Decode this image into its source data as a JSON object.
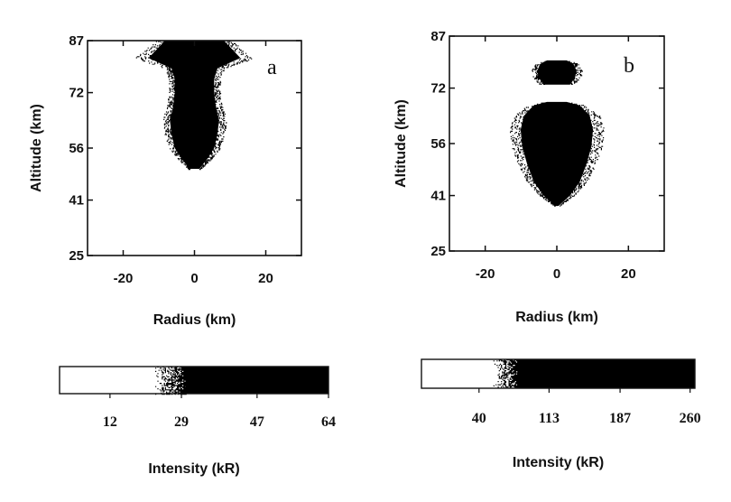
{
  "chart_data": [
    {
      "type": "heatmap",
      "panel_label": "a",
      "xlabel": "Radius (km)",
      "ylabel": "Altitude (km)",
      "xlim": [
        -30,
        30
      ],
      "ylim": [
        25,
        87
      ],
      "xticks": [
        -20,
        0,
        20
      ],
      "yticks": [
        25,
        41,
        56,
        72,
        87
      ],
      "grid": false,
      "emission_profile": {
        "description_units": "half-width of high-intensity region in km at each altitude",
        "altitude": [
          50,
          53,
          56,
          60,
          64,
          68,
          72,
          76,
          79,
          82,
          85,
          87
        ],
        "half_width": [
          1.5,
          4,
          6,
          7,
          7.5,
          6.5,
          6,
          6,
          7,
          14,
          11,
          9
        ]
      },
      "colorbar": {
        "label": "Intensity (kR)",
        "ticks": [
          12,
          29,
          47,
          64
        ],
        "range": [
          0,
          64
        ],
        "transition": [
          22,
          30
        ],
        "colors": [
          "#ffffff",
          "#000000"
        ]
      }
    },
    {
      "type": "heatmap",
      "panel_label": "b",
      "xlabel": "Radius (km)",
      "ylabel": "Altitude (km)",
      "xlim": [
        -30,
        30
      ],
      "ylim": [
        25,
        87
      ],
      "xticks": [
        -20,
        0,
        20
      ],
      "yticks": [
        25,
        41,
        56,
        72,
        87
      ],
      "grid": false,
      "emission_profile": {
        "altitude": [
          38,
          41,
          45,
          50,
          55,
          60,
          64,
          67,
          68
        ],
        "half_width": [
          0.5,
          4,
          7,
          9,
          10.5,
          11,
          10,
          7,
          3
        ]
      },
      "upper_patch": {
        "altitude": [
          73,
          75,
          77,
          79,
          80
        ],
        "half_width": [
          4,
          5.5,
          6,
          5,
          3
        ]
      },
      "colorbar": {
        "label": "Intensity (kR)",
        "ticks": [
          40,
          113,
          187,
          260
        ],
        "range": [
          -20,
          265
        ],
        "transition": [
          55,
          80
        ],
        "colors": [
          "#ffffff",
          "#000000"
        ]
      }
    }
  ],
  "colors": {
    "ink": "#111111",
    "background": "#ffffff"
  }
}
